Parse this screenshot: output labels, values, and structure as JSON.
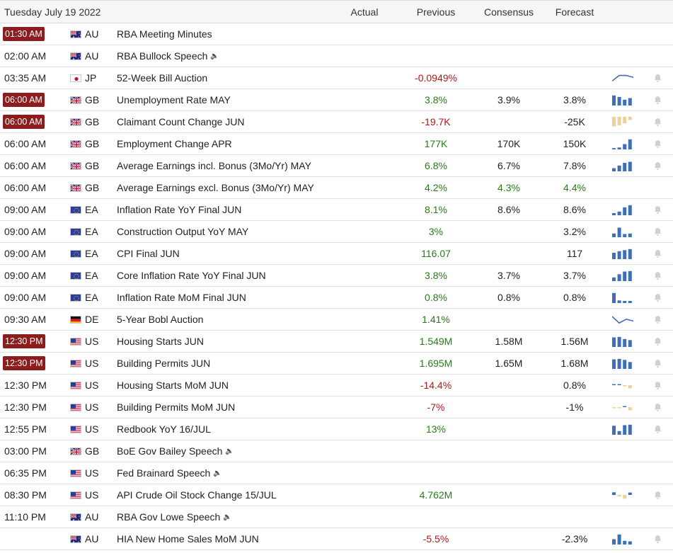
{
  "header": {
    "date": "Tuesday July 19 2022",
    "actual": "Actual",
    "previous": "Previous",
    "consensus": "Consensus",
    "forecast": "Forecast"
  },
  "colors": {
    "positive": "#2a7a1b",
    "negative": "#b01818",
    "badge": "#8c1d1d",
    "bar_blue": "#3f6fb5",
    "bar_tan": "#e9d39a"
  },
  "rows": [
    {
      "time": "01:30 AM",
      "badge": true,
      "country": "AU",
      "flag": "au-flag-icon",
      "event": "RBA Meeting Minutes",
      "sound": false,
      "actual": "",
      "previous": "",
      "prev_tone": "neu",
      "consensus": "",
      "forecast": "",
      "chart": {
        "type": "none"
      },
      "bell": false
    },
    {
      "time": "02:00 AM",
      "badge": false,
      "country": "AU",
      "flag": "au-flag-icon",
      "event": "RBA Bullock Speech",
      "sound": true,
      "actual": "",
      "previous": "",
      "prev_tone": "neu",
      "consensus": "",
      "forecast": "",
      "chart": {
        "type": "none"
      },
      "bell": false
    },
    {
      "time": "03:35 AM",
      "badge": false,
      "country": "JP",
      "flag": "jp-flag-icon",
      "event": "52-Week Bill Auction",
      "sound": false,
      "actual": "",
      "previous": "-0.0949%",
      "prev_tone": "neg",
      "consensus": "",
      "forecast": "",
      "chart": {
        "type": "line",
        "values": [
          0.2,
          0.8,
          0.8,
          0.6
        ]
      },
      "bell": true
    },
    {
      "time": "06:00 AM",
      "badge": true,
      "country": "GB",
      "flag": "gb-flag-icon",
      "event": "Unemployment Rate MAY",
      "sound": false,
      "actual": "",
      "previous": "3.8%",
      "prev_tone": "pos",
      "consensus": "3.9%",
      "forecast": "3.8%",
      "chart": {
        "type": "bar",
        "values": [
          0.95,
          0.8,
          0.55,
          0.7
        ]
      },
      "bell": true
    },
    {
      "time": "06:00 AM",
      "badge": true,
      "country": "GB",
      "flag": "gb-flag-icon",
      "event": "Claimant Count Change JUN",
      "sound": false,
      "actual": "",
      "previous": "-19.7K",
      "prev_tone": "neg",
      "consensus": "",
      "forecast": "-25K",
      "chart": {
        "type": "negbar",
        "values": [
          -0.9,
          -0.8,
          -0.6,
          -0.3
        ]
      },
      "bell": true
    },
    {
      "time": "06:00 AM",
      "badge": false,
      "country": "GB",
      "flag": "gb-flag-icon",
      "event": "Employment Change APR",
      "sound": false,
      "actual": "",
      "previous": "177K",
      "prev_tone": "pos",
      "consensus": "170K",
      "forecast": "150K",
      "chart": {
        "type": "bar",
        "values": [
          0.12,
          0.18,
          0.5,
          0.95
        ]
      },
      "bell": true
    },
    {
      "time": "06:00 AM",
      "badge": false,
      "country": "GB",
      "flag": "gb-flag-icon",
      "event": "Average Earnings incl. Bonus (3Mo/Yr) MAY",
      "sound": false,
      "actual": "",
      "previous": "6.8%",
      "prev_tone": "pos",
      "consensus": "6.7%",
      "forecast": "7.8%",
      "chart": {
        "type": "bar",
        "values": [
          0.3,
          0.55,
          0.8,
          0.9
        ]
      },
      "bell": true
    },
    {
      "time": "06:00 AM",
      "badge": false,
      "country": "GB",
      "flag": "gb-flag-icon",
      "event": "Average Earnings excl. Bonus (3Mo/Yr) MAY",
      "sound": false,
      "actual": "",
      "previous": "4.2%",
      "prev_tone": "pos",
      "consensus": "4.3%",
      "cons_tone": "pos",
      "forecast": "4.4%",
      "fore_tone": "pos",
      "chart": {
        "type": "none"
      },
      "bell": false
    },
    {
      "time": "09:00 AM",
      "badge": false,
      "country": "EA",
      "flag": "eu-flag-icon",
      "event": "Inflation Rate YoY Final JUN",
      "sound": false,
      "actual": "",
      "previous": "8.1%",
      "prev_tone": "pos",
      "consensus": "8.6%",
      "forecast": "8.6%",
      "chart": {
        "type": "bar",
        "values": [
          0.2,
          0.35,
          0.75,
          0.95
        ]
      },
      "bell": true
    },
    {
      "time": "09:00 AM",
      "badge": false,
      "country": "EA",
      "flag": "eu-flag-icon",
      "event": "Construction Output YoY MAY",
      "sound": false,
      "actual": "",
      "previous": "3%",
      "prev_tone": "pos",
      "consensus": "",
      "forecast": "3.2%",
      "chart": {
        "type": "bar",
        "values": [
          0.35,
          0.9,
          0.3,
          0.35
        ]
      },
      "bell": true
    },
    {
      "time": "09:00 AM",
      "badge": false,
      "country": "EA",
      "flag": "eu-flag-icon",
      "event": "CPI Final JUN",
      "sound": false,
      "actual": "",
      "previous": "116.07",
      "prev_tone": "pos",
      "consensus": "",
      "forecast": "117",
      "chart": {
        "type": "bar",
        "values": [
          0.6,
          0.75,
          0.85,
          0.95
        ]
      },
      "bell": true
    },
    {
      "time": "09:00 AM",
      "badge": false,
      "country": "EA",
      "flag": "eu-flag-icon",
      "event": "Core Inflation Rate YoY Final JUN",
      "sound": false,
      "actual": "",
      "previous": "3.8%",
      "prev_tone": "pos",
      "consensus": "3.7%",
      "forecast": "3.7%",
      "chart": {
        "type": "bar",
        "values": [
          0.35,
          0.65,
          0.9,
          0.95
        ]
      },
      "bell": true
    },
    {
      "time": "09:00 AM",
      "badge": false,
      "country": "EA",
      "flag": "eu-flag-icon",
      "event": "Inflation Rate MoM Final JUN",
      "sound": false,
      "actual": "",
      "previous": "0.8%",
      "prev_tone": "pos",
      "consensus": "0.8%",
      "forecast": "0.8%",
      "chart": {
        "type": "bar",
        "values": [
          0.95,
          0.25,
          0.2,
          0.2
        ]
      },
      "bell": true
    },
    {
      "time": "09:30 AM",
      "badge": false,
      "country": "DE",
      "flag": "de-flag-icon",
      "event": "5-Year Bobl Auction",
      "sound": false,
      "actual": "",
      "previous": "1.41%",
      "prev_tone": "pos",
      "consensus": "",
      "forecast": "",
      "chart": {
        "type": "line",
        "values": [
          0.85,
          0.15,
          0.55,
          0.35
        ]
      },
      "bell": true
    },
    {
      "time": "12:30 PM",
      "badge": true,
      "country": "US",
      "flag": "us-flag-icon",
      "event": "Housing Starts JUN",
      "sound": false,
      "actual": "",
      "previous": "1.549M",
      "prev_tone": "pos",
      "consensus": "1.58M",
      "forecast": "1.56M",
      "chart": {
        "type": "bar",
        "values": [
          0.9,
          0.95,
          0.75,
          0.65
        ]
      },
      "bell": true
    },
    {
      "time": "12:30 PM",
      "badge": true,
      "country": "US",
      "flag": "us-flag-icon",
      "event": "Building Permits JUN",
      "sound": false,
      "actual": "",
      "previous": "1.695M",
      "prev_tone": "pos",
      "consensus": "1.65M",
      "forecast": "1.68M",
      "chart": {
        "type": "bar",
        "values": [
          0.9,
          0.95,
          0.85,
          0.65
        ]
      },
      "bell": true
    },
    {
      "time": "12:30 PM",
      "badge": false,
      "country": "US",
      "flag": "us-flag-icon",
      "event": "Housing Starts MoM JUN",
      "sound": false,
      "actual": "",
      "previous": "-14.4%",
      "prev_tone": "neg",
      "consensus": "",
      "forecast": "0.8%",
      "chart": {
        "type": "mixed",
        "values": [
          0.15,
          0.1,
          -0.2,
          -0.6
        ]
      },
      "bell": true
    },
    {
      "time": "12:30 PM",
      "badge": false,
      "country": "US",
      "flag": "us-flag-icon",
      "event": "Building Permits MoM JUN",
      "sound": false,
      "actual": "",
      "previous": "-7%",
      "prev_tone": "neg",
      "consensus": "",
      "forecast": "-1%",
      "chart": {
        "type": "mixed",
        "values": [
          -0.1,
          -0.15,
          0.15,
          -0.6
        ]
      },
      "bell": true
    },
    {
      "time": "12:55 PM",
      "badge": false,
      "country": "US",
      "flag": "us-flag-icon",
      "event": "Redbook YoY 16/JUL",
      "sound": false,
      "actual": "",
      "previous": "13%",
      "prev_tone": "pos",
      "consensus": "",
      "forecast": "",
      "chart": {
        "type": "bar",
        "values": [
          0.85,
          0.35,
          0.9,
          0.95
        ]
      },
      "bell": true
    },
    {
      "time": "03:00 PM",
      "badge": false,
      "country": "GB",
      "flag": "gb-flag-icon",
      "event": "BoE Gov Bailey Speech",
      "sound": true,
      "actual": "",
      "previous": "",
      "prev_tone": "neu",
      "consensus": "",
      "forecast": "",
      "chart": {
        "type": "none"
      },
      "bell": false
    },
    {
      "time": "06:35 PM",
      "badge": false,
      "country": "US",
      "flag": "us-flag-icon",
      "event": "Fed Brainard Speech",
      "sound": true,
      "actual": "",
      "previous": "",
      "prev_tone": "neu",
      "consensus": "",
      "forecast": "",
      "chart": {
        "type": "none"
      },
      "bell": false
    },
    {
      "time": "08:30 PM",
      "badge": false,
      "country": "US",
      "flag": "us-flag-icon",
      "event": "API Crude Oil Stock Change 15/JUL",
      "sound": false,
      "actual": "",
      "previous": "4.762M",
      "prev_tone": "pos",
      "consensus": "",
      "forecast": "",
      "chart": {
        "type": "mixed",
        "values": [
          0.5,
          -0.3,
          -0.7,
          0.45
        ]
      },
      "bell": true
    },
    {
      "time": "11:10 PM",
      "badge": false,
      "country": "AU",
      "flag": "au-flag-icon",
      "event": "RBA Gov Lowe Speech",
      "sound": true,
      "actual": "",
      "previous": "",
      "prev_tone": "neu",
      "consensus": "",
      "forecast": "",
      "chart": {
        "type": "none"
      },
      "bell": false
    },
    {
      "time": "",
      "badge": false,
      "country": "AU",
      "flag": "au-flag-icon",
      "event": "HIA New Home Sales MoM JUN",
      "sound": false,
      "actual": "",
      "previous": "-5.5%",
      "prev_tone": "neg",
      "consensus": "",
      "forecast": "-2.3%",
      "chart": {
        "type": "bar",
        "values": [
          0.5,
          0.95,
          0.35,
          0.3
        ]
      },
      "bell": true
    }
  ]
}
